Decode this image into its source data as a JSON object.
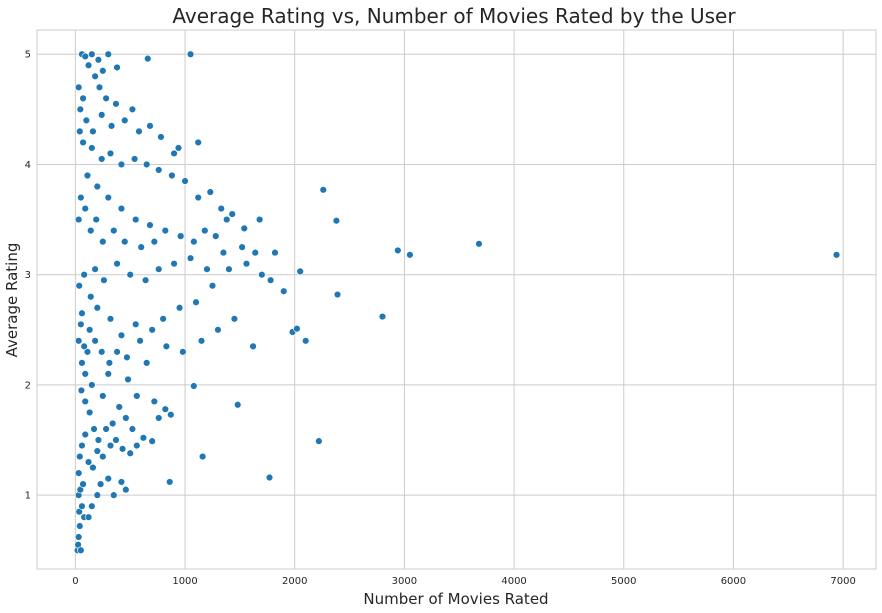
{
  "chart_data": {
    "type": "scatter",
    "title": "Average Rating vs, Number of Movies Rated by the User",
    "xlabel": "Number of Movies Rated",
    "ylabel": "Average Rating",
    "xlim": [
      -350,
      7300
    ],
    "ylim": [
      0.33,
      5.22
    ],
    "xticks": [
      0,
      1000,
      2000,
      3000,
      4000,
      5000,
      6000,
      7000
    ],
    "yticks": [
      1,
      2,
      3,
      4,
      5
    ],
    "xtick_labels": [
      "0",
      "1000",
      "2000",
      "3000",
      "4000",
      "5000",
      "6000",
      "7000"
    ],
    "ytick_labels": [
      "1",
      "2",
      "3",
      "4",
      "5"
    ],
    "grid": true,
    "point_color": "#1f77b4",
    "series": [
      {
        "values": [
          [
            20,
            0.5
          ],
          [
            25,
            0.55
          ],
          [
            30,
            0.62
          ],
          [
            40,
            0.72
          ],
          [
            50,
            0.5
          ],
          [
            35,
            0.85
          ],
          [
            60,
            0.9
          ],
          [
            30,
            1.0
          ],
          [
            45,
            1.05
          ],
          [
            70,
            1.1
          ],
          [
            80,
            0.8
          ],
          [
            120,
            0.8
          ],
          [
            150,
            0.9
          ],
          [
            200,
            1.0
          ],
          [
            230,
            1.1
          ],
          [
            300,
            1.15
          ],
          [
            350,
            1.0
          ],
          [
            420,
            1.12
          ],
          [
            460,
            1.05
          ],
          [
            30,
            1.2
          ],
          [
            40,
            1.35
          ],
          [
            60,
            1.45
          ],
          [
            90,
            1.55
          ],
          [
            120,
            1.3
          ],
          [
            160,
            1.25
          ],
          [
            200,
            1.4
          ],
          [
            250,
            1.35
          ],
          [
            320,
            1.45
          ],
          [
            370,
            1.5
          ],
          [
            430,
            1.42
          ],
          [
            500,
            1.38
          ],
          [
            560,
            1.45
          ],
          [
            620,
            1.52
          ],
          [
            700,
            1.49
          ],
          [
            760,
            1.7
          ],
          [
            820,
            1.78
          ],
          [
            860,
            1.12
          ],
          [
            1160,
            1.35
          ],
          [
            1770,
            1.16
          ],
          [
            2220,
            1.49
          ],
          [
            1480,
            1.82
          ],
          [
            1080,
            1.99
          ],
          [
            720,
            1.85
          ],
          [
            560,
            1.9
          ],
          [
            400,
            1.8
          ],
          [
            250,
            1.9
          ],
          [
            150,
            2.0
          ],
          [
            90,
            2.1
          ],
          [
            60,
            2.2
          ],
          [
            110,
            2.3
          ],
          [
            300,
            2.1
          ],
          [
            480,
            2.05
          ],
          [
            650,
            2.2
          ],
          [
            830,
            2.35
          ],
          [
            980,
            2.3
          ],
          [
            1150,
            2.4
          ],
          [
            1300,
            2.5
          ],
          [
            1450,
            2.6
          ],
          [
            1620,
            2.35
          ],
          [
            1980,
            2.48
          ],
          [
            2020,
            2.51
          ],
          [
            2100,
            2.4
          ],
          [
            2800,
            2.62
          ],
          [
            2390,
            2.82
          ],
          [
            1900,
            2.85
          ],
          [
            1780,
            2.95
          ],
          [
            1700,
            3.0
          ],
          [
            1560,
            3.1
          ],
          [
            1400,
            3.05
          ],
          [
            1250,
            2.9
          ],
          [
            1100,
            2.75
          ],
          [
            950,
            2.7
          ],
          [
            800,
            2.6
          ],
          [
            700,
            2.5
          ],
          [
            550,
            2.55
          ],
          [
            420,
            2.45
          ],
          [
            320,
            2.6
          ],
          [
            200,
            2.7
          ],
          [
            140,
            2.8
          ],
          [
            60,
            2.65
          ],
          [
            35,
            2.9
          ],
          [
            80,
            3.0
          ],
          [
            180,
            3.05
          ],
          [
            260,
            2.95
          ],
          [
            380,
            3.1
          ],
          [
            500,
            3.0
          ],
          [
            640,
            2.95
          ],
          [
            760,
            3.05
          ],
          [
            900,
            3.1
          ],
          [
            1050,
            3.15
          ],
          [
            1200,
            3.05
          ],
          [
            1350,
            3.2
          ],
          [
            1520,
            3.25
          ],
          [
            1640,
            3.2
          ],
          [
            1820,
            3.2
          ],
          [
            2050,
            3.03
          ],
          [
            2940,
            3.22
          ],
          [
            3050,
            3.18
          ],
          [
            3680,
            3.28
          ],
          [
            6940,
            3.18
          ],
          [
            2260,
            3.77
          ],
          [
            2380,
            3.49
          ],
          [
            1680,
            3.5
          ],
          [
            1540,
            3.42
          ],
          [
            1430,
            3.55
          ],
          [
            1330,
            3.6
          ],
          [
            1230,
            3.75
          ],
          [
            1120,
            3.7
          ],
          [
            1000,
            3.85
          ],
          [
            880,
            3.9
          ],
          [
            760,
            3.95
          ],
          [
            650,
            4.0
          ],
          [
            540,
            4.05
          ],
          [
            420,
            4.0
          ],
          [
            320,
            4.1
          ],
          [
            240,
            4.05
          ],
          [
            150,
            4.15
          ],
          [
            70,
            4.2
          ],
          [
            40,
            4.3
          ],
          [
            110,
            3.9
          ],
          [
            200,
            3.8
          ],
          [
            300,
            3.7
          ],
          [
            420,
            3.6
          ],
          [
            550,
            3.5
          ],
          [
            680,
            3.45
          ],
          [
            820,
            3.4
          ],
          [
            960,
            3.35
          ],
          [
            1080,
            3.3
          ],
          [
            1180,
            3.4
          ],
          [
            1280,
            3.35
          ],
          [
            1380,
            3.5
          ],
          [
            940,
            4.15
          ],
          [
            1120,
            4.2
          ],
          [
            900,
            4.1
          ],
          [
            780,
            4.25
          ],
          [
            680,
            4.35
          ],
          [
            580,
            4.3
          ],
          [
            520,
            4.5
          ],
          [
            450,
            4.4
          ],
          [
            370,
            4.55
          ],
          [
            280,
            4.6
          ],
          [
            220,
            4.7
          ],
          [
            180,
            4.8
          ],
          [
            120,
            4.9
          ],
          [
            60,
            5.0
          ],
          [
            90,
            4.98
          ],
          [
            150,
            5.0
          ],
          [
            210,
            4.95
          ],
          [
            300,
            5.0
          ],
          [
            380,
            4.88
          ],
          [
            250,
            4.85
          ],
          [
            660,
            4.96
          ],
          [
            1050,
            5.0
          ],
          [
            30,
            4.7
          ],
          [
            45,
            4.5
          ],
          [
            70,
            4.6
          ],
          [
            100,
            4.4
          ],
          [
            160,
            4.3
          ],
          [
            240,
            4.45
          ],
          [
            330,
            4.35
          ],
          [
            30,
            3.5
          ],
          [
            50,
            3.7
          ],
          [
            90,
            3.6
          ],
          [
            140,
            3.4
          ],
          [
            190,
            3.5
          ],
          [
            250,
            3.3
          ],
          [
            350,
            3.4
          ],
          [
            450,
            3.3
          ],
          [
            600,
            3.25
          ],
          [
            720,
            3.3
          ],
          [
            30,
            2.4
          ],
          [
            50,
            2.55
          ],
          [
            80,
            2.35
          ],
          [
            130,
            2.5
          ],
          [
            180,
            2.4
          ],
          [
            240,
            2.3
          ],
          [
            310,
            2.2
          ],
          [
            380,
            2.3
          ],
          [
            470,
            2.25
          ],
          [
            590,
            2.4
          ],
          [
            870,
            1.73
          ],
          [
            520,
            1.6
          ],
          [
            460,
            1.7
          ],
          [
            340,
            1.65
          ],
          [
            280,
            1.6
          ],
          [
            210,
            1.5
          ],
          [
            170,
            1.6
          ],
          [
            130,
            1.75
          ],
          [
            90,
            1.85
          ],
          [
            55,
            1.95
          ]
        ]
      }
    ]
  }
}
